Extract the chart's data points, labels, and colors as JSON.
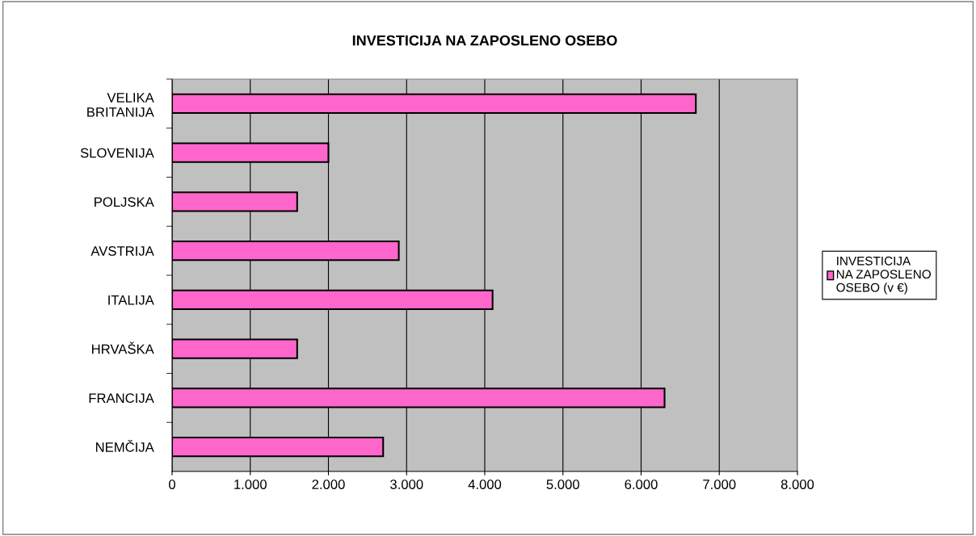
{
  "chart_data": {
    "type": "bar",
    "orientation": "horizontal",
    "title": "INVESTICIJA NA ZAPOSLENO OSEBO",
    "categories": [
      "VELIKA BRITANIJA",
      "SLOVENIJA",
      "POLJSKA",
      "AVSTRIJA",
      "ITALIJA",
      "HRVAŠKA",
      "FRANCIJA",
      "NEMČIJA"
    ],
    "series": [
      {
        "name": "INVESTICIJA NA ZAPOSLENO OSEBO (v €)",
        "color": "#ff66cc",
        "values": [
          6700,
          2000,
          1600,
          2900,
          4100,
          1600,
          6300,
          2700
        ]
      }
    ],
    "xlim": [
      0,
      8000
    ],
    "xticks": [
      0,
      {
        "value": 1000,
        "label": "1.000"
      },
      {
        "value": 2000,
        "label": "2.000"
      },
      {
        "value": 3000,
        "label": "3.000"
      },
      {
        "value": 4000,
        "label": "4.000"
      },
      {
        "value": 5000,
        "label": "5.000"
      },
      {
        "value": 6000,
        "label": "6.000"
      },
      {
        "value": 7000,
        "label": "7.000"
      },
      {
        "value": 8000,
        "label": "8.000"
      }
    ],
    "grid": "x",
    "legend": "right"
  }
}
